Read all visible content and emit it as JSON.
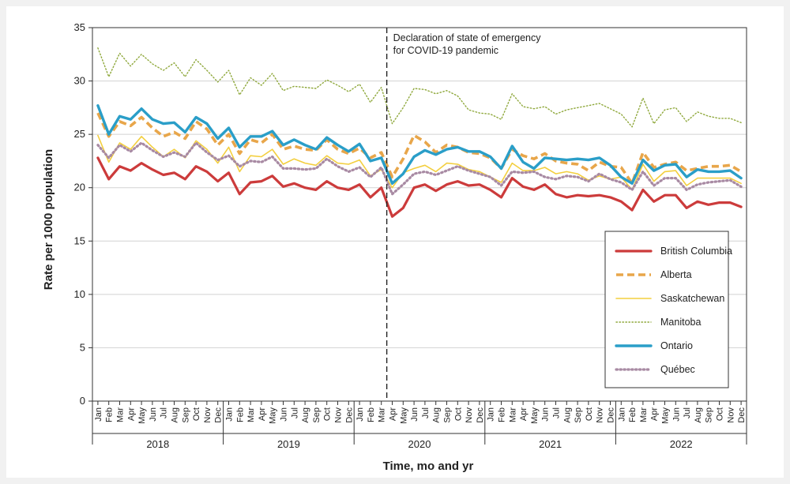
{
  "chart_data": {
    "type": "line",
    "xlabel": "Time, mo and yr",
    "ylabel": "Rate per 1000 population",
    "ylim": [
      0,
      35
    ],
    "yticks": [
      0,
      5,
      10,
      15,
      20,
      25,
      30,
      35
    ],
    "grid": "horizontal",
    "legend_position": "bottom-right",
    "months": [
      "Jan",
      "Feb",
      "Mar",
      "Apr",
      "May",
      "Jun",
      "Jul",
      "Aug",
      "Sep",
      "Oct",
      "Nov",
      "Dec"
    ],
    "years": [
      "2018",
      "2019",
      "2020",
      "2021",
      "2022"
    ],
    "annotation": {
      "at": "2020 Mar",
      "lines": [
        "Declaration of state of emergency",
        "for COVID-19 pandemic"
      ]
    },
    "series": [
      {
        "name": "Manitoba",
        "color": "#8fa83c",
        "style": "dotted",
        "values": [
          33.1,
          30.4,
          32.6,
          31.4,
          32.5,
          31.6,
          31.0,
          31.7,
          30.4,
          32.0,
          31.0,
          29.9,
          31.0,
          28.7,
          30.3,
          29.6,
          30.7,
          29.1,
          29.5,
          29.4,
          29.3,
          30.1,
          29.6,
          29.0,
          29.7,
          28.0,
          29.4,
          26.0,
          27.5,
          29.3,
          29.2,
          28.8,
          29.1,
          28.6,
          27.3,
          27.0,
          26.9,
          26.4,
          28.8,
          27.6,
          27.4,
          27.6,
          26.9,
          27.3,
          27.5,
          27.7,
          27.9,
          27.4,
          26.9,
          25.7,
          28.4,
          26.0,
          27.3,
          27.5,
          26.2,
          27.1,
          26.7,
          26.5,
          26.5,
          26.1
        ]
      },
      {
        "name": "Alberta",
        "color": "#e8a64a",
        "style": "dashed",
        "values": [
          27.0,
          24.8,
          26.2,
          25.8,
          26.6,
          25.6,
          24.8,
          25.2,
          24.6,
          26.2,
          25.5,
          24.0,
          25.0,
          23.2,
          24.5,
          24.2,
          25.0,
          23.6,
          23.9,
          23.6,
          23.5,
          24.5,
          23.6,
          23.2,
          23.7,
          22.8,
          23.3,
          21.0,
          22.7,
          24.9,
          24.3,
          23.3,
          24.0,
          23.8,
          23.3,
          23.2,
          22.8,
          21.8,
          23.6,
          23.0,
          22.7,
          23.2,
          22.5,
          22.3,
          22.2,
          21.6,
          22.4,
          22.0,
          21.9,
          20.4,
          23.3,
          21.9,
          22.2,
          22.4,
          21.6,
          21.8,
          22.0,
          22.0,
          22.1,
          21.5
        ]
      },
      {
        "name": "Saskatchewan",
        "color": "#f3cf3f",
        "style": "solid",
        "values": [
          24.9,
          22.4,
          24.2,
          23.6,
          24.8,
          23.8,
          22.9,
          23.6,
          22.8,
          24.4,
          23.6,
          22.3,
          23.8,
          21.5,
          23.0,
          22.9,
          23.6,
          22.2,
          22.7,
          22.3,
          22.1,
          23.0,
          22.3,
          22.2,
          22.6,
          21.1,
          21.7,
          20.0,
          21.4,
          21.8,
          22.1,
          21.5,
          22.3,
          22.2,
          21.7,
          21.5,
          21.0,
          20.5,
          22.3,
          21.6,
          21.6,
          21.9,
          21.3,
          21.5,
          21.3,
          20.7,
          21.1,
          20.8,
          21.0,
          19.8,
          22.2,
          20.6,
          21.5,
          21.6,
          20.2,
          20.9,
          20.9,
          20.9,
          20.9,
          20.4
        ]
      },
      {
        "name": "Québec",
        "color": "#a88aa3",
        "style": "dotted",
        "values": [
          24.0,
          22.8,
          24.0,
          23.4,
          24.2,
          23.5,
          22.9,
          23.3,
          22.9,
          24.2,
          23.3,
          22.6,
          23.0,
          22.0,
          22.5,
          22.4,
          22.9,
          21.8,
          21.8,
          21.7,
          21.8,
          22.7,
          22.0,
          21.5,
          21.9,
          21.0,
          21.9,
          19.4,
          20.3,
          21.3,
          21.5,
          21.2,
          21.6,
          22.0,
          21.6,
          21.3,
          21.0,
          20.2,
          21.5,
          21.4,
          21.5,
          21.0,
          20.8,
          21.1,
          21.0,
          20.6,
          21.3,
          20.8,
          20.5,
          19.8,
          21.5,
          20.2,
          20.9,
          20.9,
          19.8,
          20.3,
          20.5,
          20.6,
          20.7,
          20.1
        ]
      },
      {
        "name": "Ontario",
        "color": "#2a9ec8",
        "style": "solid",
        "values": [
          27.7,
          25.0,
          26.7,
          26.4,
          27.4,
          26.4,
          26.0,
          26.1,
          25.2,
          26.6,
          26.0,
          24.6,
          25.6,
          23.8,
          24.8,
          24.8,
          25.3,
          24.0,
          24.5,
          24.0,
          23.6,
          24.7,
          24.0,
          23.4,
          24.1,
          22.5,
          22.8,
          20.4,
          21.3,
          22.9,
          23.5,
          23.1,
          23.6,
          23.8,
          23.4,
          23.4,
          22.9,
          21.8,
          23.9,
          22.4,
          21.8,
          22.8,
          22.7,
          22.6,
          22.7,
          22.6,
          22.8,
          22.1,
          21.0,
          20.4,
          22.6,
          21.6,
          22.1,
          22.2,
          21.0,
          21.7,
          21.5,
          21.5,
          21.6,
          20.9
        ]
      },
      {
        "name": "British Columbia",
        "color": "#cc3b3b",
        "style": "solid",
        "values": [
          22.8,
          20.8,
          22.0,
          21.6,
          22.3,
          21.7,
          21.2,
          21.4,
          20.8,
          22.0,
          21.5,
          20.6,
          21.4,
          19.4,
          20.5,
          20.6,
          21.1,
          20.1,
          20.4,
          20.0,
          19.8,
          20.6,
          20.0,
          19.8,
          20.3,
          19.1,
          20.0,
          17.3,
          18.1,
          20.0,
          20.3,
          19.7,
          20.3,
          20.6,
          20.2,
          20.3,
          19.8,
          19.1,
          20.9,
          20.1,
          19.8,
          20.3,
          19.4,
          19.1,
          19.3,
          19.2,
          19.3,
          19.1,
          18.7,
          17.9,
          19.8,
          18.7,
          19.3,
          19.3,
          18.1,
          18.7,
          18.4,
          18.6,
          18.6,
          18.2
        ]
      }
    ],
    "legend_order": [
      "British Columbia",
      "Alberta",
      "Saskatchewan",
      "Manitoba",
      "Ontario",
      "Québec"
    ]
  }
}
